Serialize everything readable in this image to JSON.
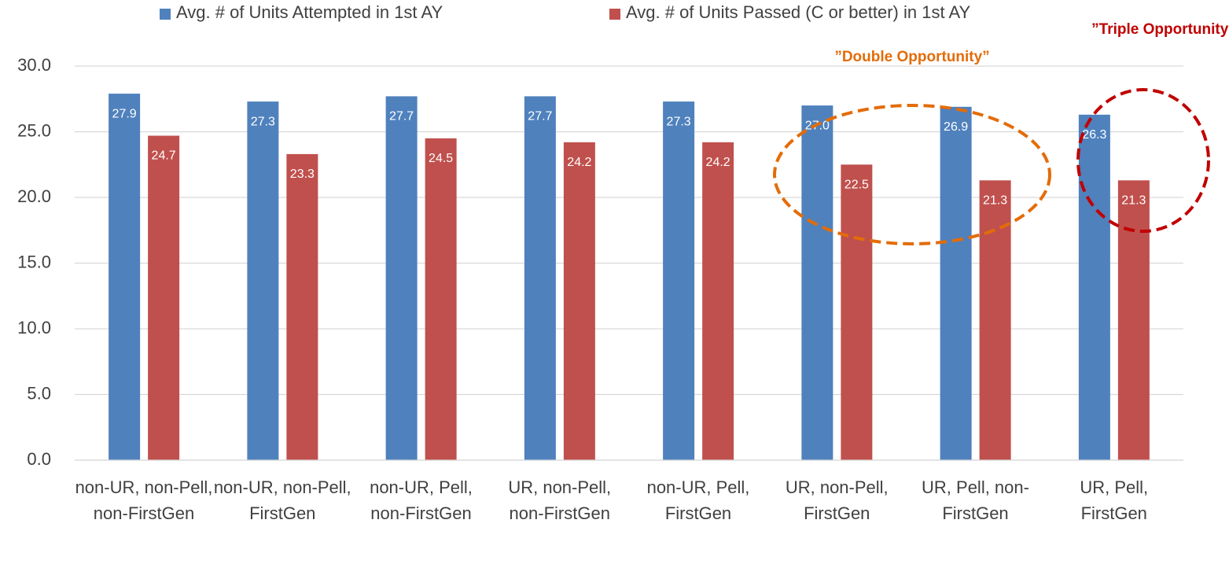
{
  "chart_data": {
    "type": "bar",
    "categories": [
      "non-UR, non-Pell, non-FirstGen",
      "non-UR, non-Pell, FirstGen",
      "non-UR, Pell, non-FirstGen",
      "UR, non-Pell, non-FirstGen",
      "non-UR, Pell, FirstGen",
      "UR, non-Pell, FirstGen",
      "UR, Pell, non-FirstGen",
      "UR, Pell, FirstGen"
    ],
    "series": [
      {
        "name": "Avg. # of Units Attempted in 1st AY",
        "color": "#4f81bd",
        "values": [
          27.9,
          27.3,
          27.7,
          27.7,
          27.3,
          27.0,
          26.9,
          26.3
        ],
        "value_labels": [
          "27.9",
          "27.3",
          "27.7",
          "27.7",
          "27.3",
          "27.0",
          "26.9",
          "26.3"
        ]
      },
      {
        "name": "Avg. # of Units Passed (C or better) in 1st AY",
        "color": "#c0504d",
        "values": [
          24.7,
          23.3,
          24.5,
          24.2,
          24.2,
          22.5,
          21.3,
          21.3
        ],
        "value_labels": [
          "24.7",
          "23.3",
          "24.5",
          "24.2",
          "24.2",
          "22.5",
          "21.3",
          "21.3"
        ]
      }
    ],
    "ylim": [
      0,
      30
    ],
    "yticks": [
      {
        "value": 0,
        "label": "0.0"
      },
      {
        "value": 5,
        "label": "5.0"
      },
      {
        "value": 10,
        "label": "10.0"
      },
      {
        "value": 15,
        "label": "15.0"
      },
      {
        "value": 20,
        "label": "20.0"
      },
      {
        "value": 25,
        "label": "25.0"
      },
      {
        "value": 30,
        "label": "30.0"
      }
    ],
    "grid": true,
    "legend": "top",
    "annotations": [
      {
        "text": "”Double Opportunity”",
        "color": "#e36c09"
      },
      {
        "text": "”Triple Opportunity”",
        "color": "#c00000"
      }
    ]
  }
}
